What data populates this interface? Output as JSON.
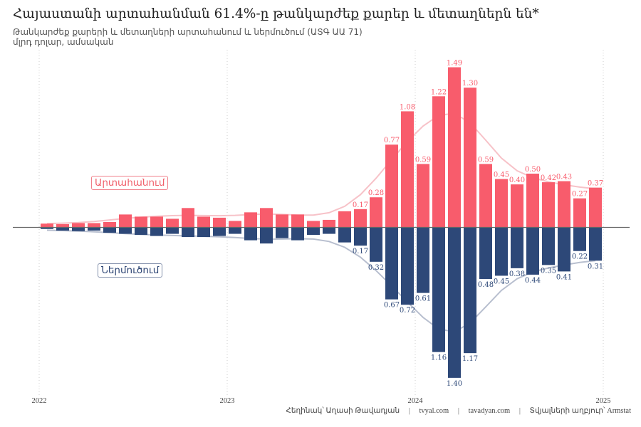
{
  "header": {
    "title": "Հայաստանի արտահանման 61.4%-ը թանկարժեք քարեր և մետաղներն են*",
    "subtitle": "Թանկարժեք քարերի և մետաղների արտահանում և ներմուծում (ԱՏԳ ԱԱ 71)",
    "units": "մլրդ դոլար, ամսական"
  },
  "legend": {
    "export_label": "Արտահանում",
    "import_label": "Ներմուծում"
  },
  "caption": {
    "author": "Հեղինակ՝ Աղասի Թավադյան",
    "site1": "tvyal.com",
    "site2": "tavadyan.com",
    "source": "Տվյալների աղբյուր՝ Armstat",
    "separator": "|"
  },
  "colors": {
    "export": "#f85c6c",
    "import": "#2d4878",
    "export_trend": "#f7c2c8",
    "import_trend": "#b8bfcf",
    "zero_line": "#666666",
    "grid": "#cccccc"
  },
  "chart_data": {
    "type": "bar",
    "title": "Հայաստանի արտահանման 61.4%-ը թանկարժեք քարեր և մետաղներն են*",
    "subtitle": "Թանկարժեք քարերի և մետաղների արտահանում և ներմուծում (ԱՏԳ ԱԱ 71)",
    "xlabel": "",
    "ylabel": "մլրդ դոլար, ամսական",
    "x_start": "2022-01",
    "x_end": "2024-12",
    "x_ticks": [
      "2022",
      "2023",
      "2024",
      "2025"
    ],
    "grid": "vertical dotted at year boundaries",
    "ylim": [
      -1.6,
      1.6
    ],
    "legend_placement": "inline-left",
    "series": [
      {
        "name": "Արտահանում",
        "direction": "up",
        "values": [
          0.035,
          0.03,
          0.04,
          0.04,
          0.05,
          0.12,
          0.1,
          0.1,
          0.08,
          0.18,
          0.1,
          0.09,
          0.06,
          0.14,
          0.18,
          0.12,
          0.12,
          0.06,
          0.07,
          0.15,
          0.17,
          0.28,
          0.77,
          1.08,
          0.59,
          1.22,
          1.49,
          1.3,
          0.59,
          0.45,
          0.4,
          0.5,
          0.42,
          0.43,
          0.27,
          0.37
        ],
        "labeled_from_index": 20
      },
      {
        "name": "Ներմուծում",
        "direction": "down",
        "values": [
          0.015,
          0.03,
          0.035,
          0.03,
          0.05,
          0.06,
          0.07,
          0.08,
          0.06,
          0.09,
          0.09,
          0.08,
          0.06,
          0.12,
          0.15,
          0.1,
          0.12,
          0.07,
          0.06,
          0.14,
          0.17,
          0.32,
          0.67,
          0.72,
          0.61,
          1.16,
          1.4,
          1.17,
          0.48,
          0.45,
          0.38,
          0.44,
          0.35,
          0.41,
          0.22,
          0.31
        ],
        "labeled_from_index": 20
      }
    ]
  }
}
